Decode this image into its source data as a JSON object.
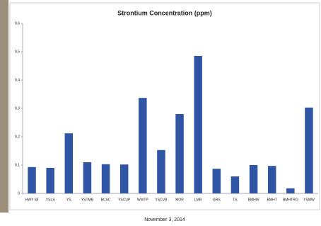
{
  "chart_data": {
    "type": "bar",
    "title": "Strontium Concentration (ppm)",
    "categories": [
      "HWY 68",
      "YSLS",
      "YS",
      "YSTMB",
      "BCSC",
      "YSCUP",
      "WWTP",
      "YSCVB",
      "MOR",
      "LMR",
      "GRS",
      "TS",
      "BMHW",
      "BMHT",
      "BMHTRO",
      "YSMW"
    ],
    "values": [
      0.093,
      0.09,
      0.212,
      0.11,
      0.103,
      0.102,
      0.337,
      0.153,
      0.28,
      0.485,
      0.087,
      0.06,
      0.1,
      0.097,
      0.018,
      0.303
    ],
    "color": "#2f55a4",
    "ylim": [
      0,
      0.6
    ],
    "yticks": [
      0,
      0.1,
      0.2,
      0.3,
      0.4,
      0.5,
      0.6
    ],
    "grid": false
  },
  "footer": "November 3, 2014"
}
